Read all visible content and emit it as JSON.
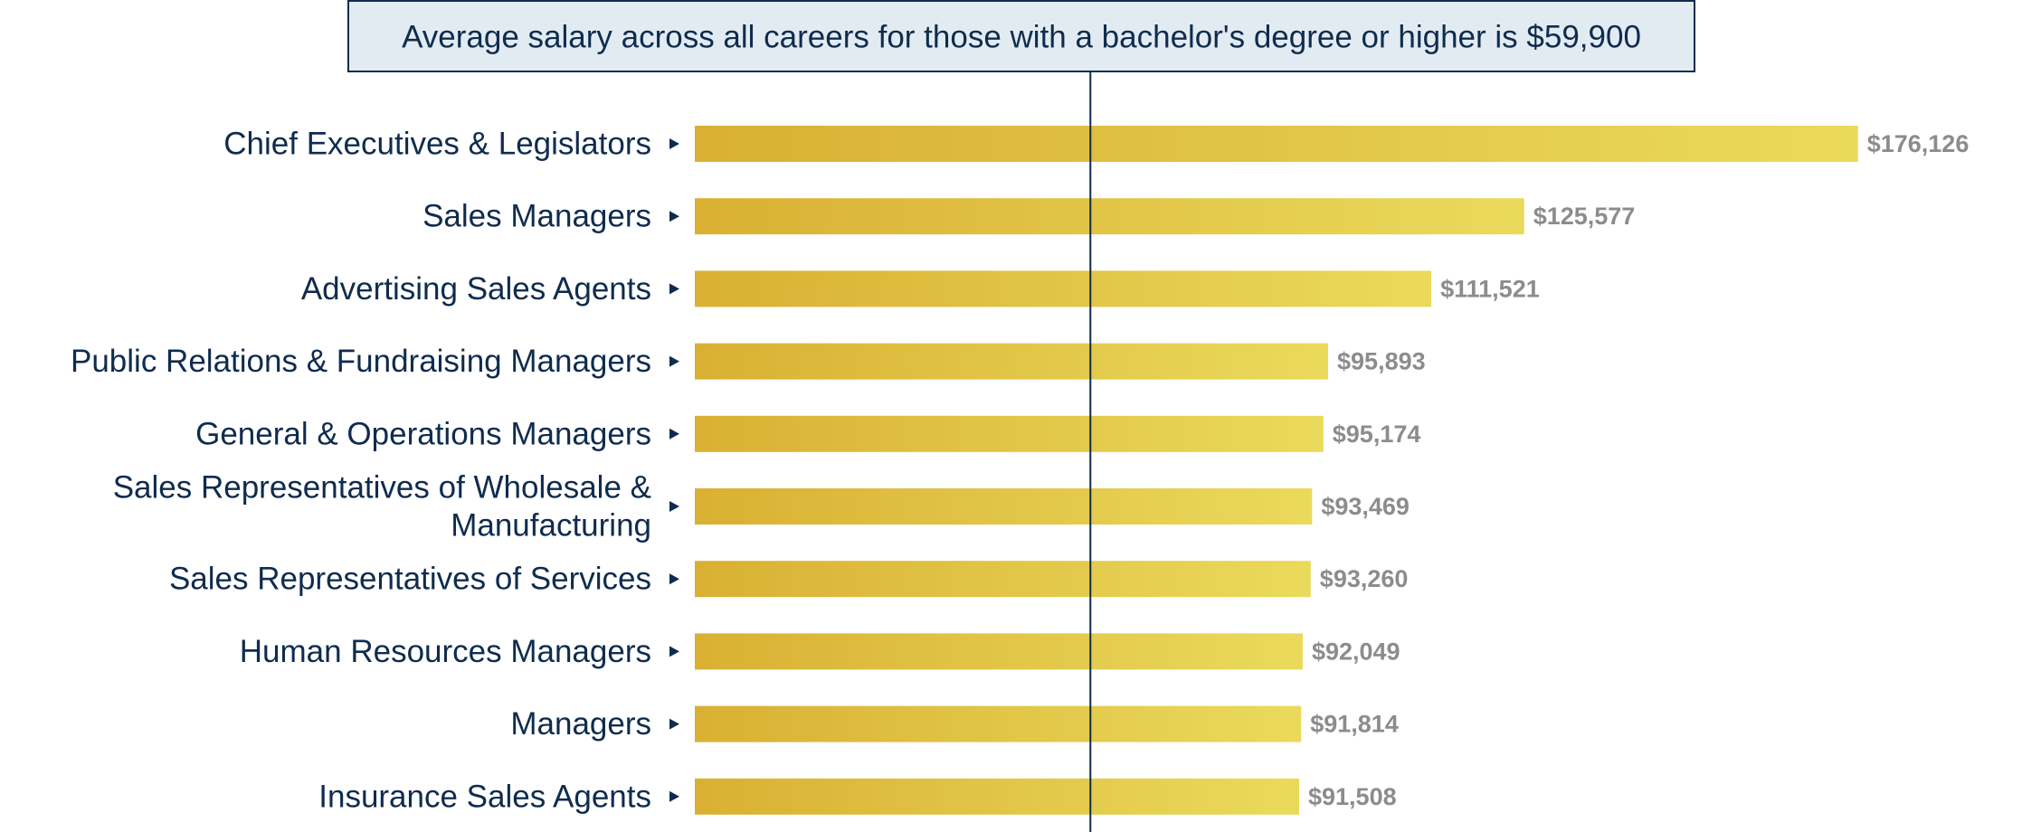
{
  "chart_data": {
    "type": "bar",
    "orientation": "horizontal",
    "categories": [
      "Chief Executives & Legislators",
      "Sales Managers",
      "Advertising Sales Agents",
      "Public Relations & Fundraising Managers",
      "General & Operations Managers",
      "Sales Representatives of Wholesale & Manufacturing",
      "Sales Representatives of Services",
      "Human Resources Managers",
      "Managers",
      "Insurance Sales Agents"
    ],
    "category_lines": [
      [
        "Chief Executives & Legislators"
      ],
      [
        "Sales Managers"
      ],
      [
        "Advertising Sales Agents"
      ],
      [
        "Public Relations & Fundraising Managers"
      ],
      [
        "General & Operations Managers"
      ],
      [
        "Sales Representatives of Wholesale &",
        "Manufacturing"
      ],
      [
        "Sales Representatives of Services"
      ],
      [
        "Human Resources Managers"
      ],
      [
        "Managers"
      ],
      [
        "Insurance Sales Agents"
      ]
    ],
    "values": [
      176126,
      125577,
      111521,
      95893,
      95174,
      93469,
      93260,
      92049,
      91814,
      91508
    ],
    "value_labels": [
      "$176,126",
      "$125,577",
      "$111,521",
      "$95,893",
      "$95,174",
      "$93,469",
      "$93,260",
      "$92,049",
      "$91,814",
      "$91,508"
    ],
    "reference_line": {
      "value": 59900,
      "label": "Average salary across all careers for those with a bachelor's degree or higher is $59,900"
    },
    "colors": {
      "bar_start": "#d9b032",
      "bar_end": "#eada5c",
      "label_text": "#0f2c4e",
      "value_text": "#8c8c8c",
      "ref_line": "#0f2c4e",
      "ref_box_fill": "#e3ebf2",
      "ref_box_stroke": "#0f2c4e",
      "marker": "#0f2c4e"
    }
  }
}
